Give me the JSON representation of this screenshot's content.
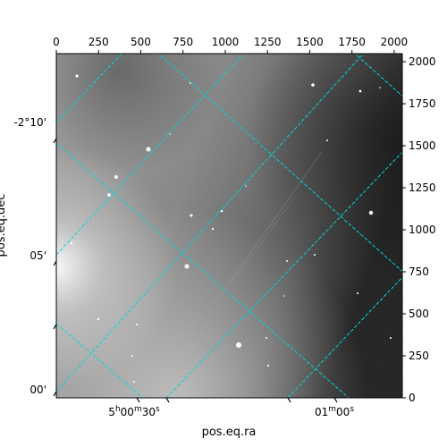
{
  "figure": {
    "x_axis_label": "pos.eq.ra",
    "y_axis_label": "pos.eq.dec",
    "grid_color": "#00d6d6",
    "top_ticks": [
      "0",
      "250",
      "500",
      "750",
      "1000",
      "1250",
      "1500",
      "1750",
      "2000"
    ],
    "right_ticks": [
      "0",
      "250",
      "500",
      "750",
      "1000",
      "1250",
      "1500",
      "1750",
      "2000"
    ],
    "left_ticks": [
      "-2°10'",
      "05'",
      "00'"
    ],
    "bottom_ticks": [
      {
        "h": "5",
        "h_unit": "h",
        "m": "00",
        "m_unit": "m",
        "s": "30",
        "s_unit": "s"
      },
      {
        "h": "",
        "h_unit": "",
        "m": "01",
        "m_unit": "m",
        "s": "00",
        "s_unit": "s"
      }
    ]
  }
}
